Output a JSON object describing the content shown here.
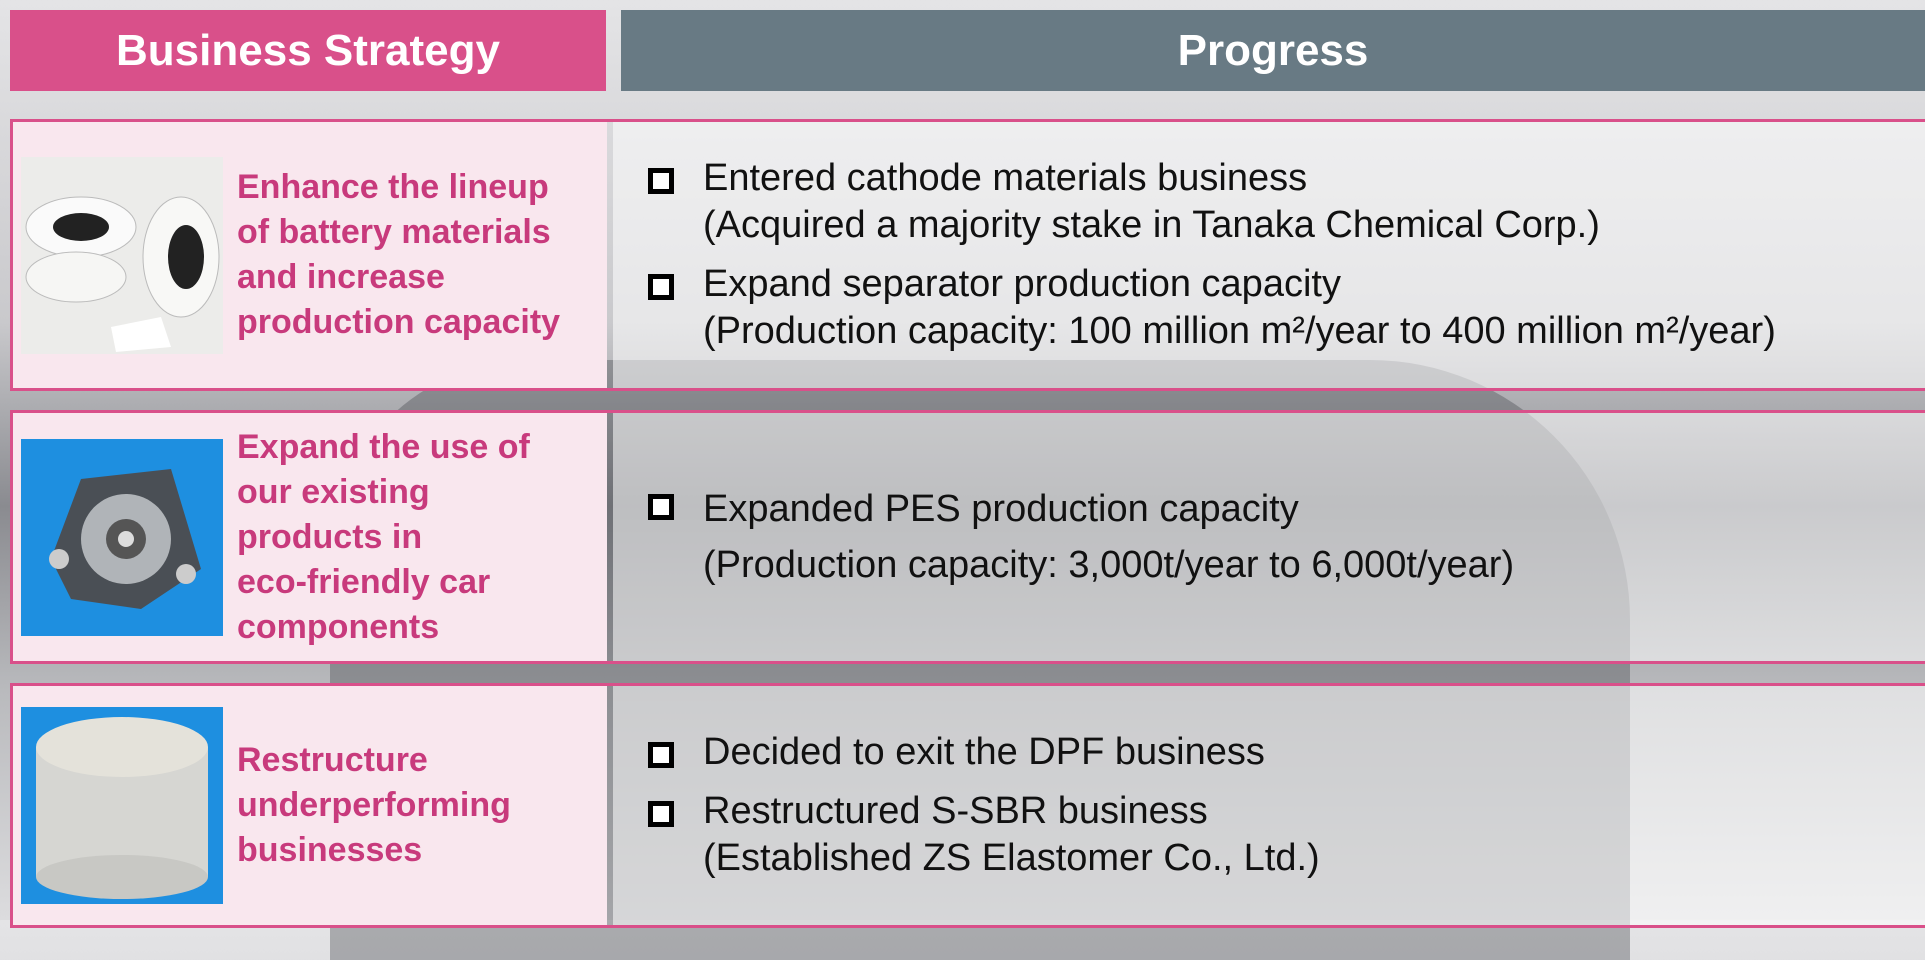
{
  "header": {
    "strategy": "Business Strategy",
    "progress": "Progress"
  },
  "rows": [
    {
      "strategy": [
        "Enhance the lineup",
        "of battery materials",
        "and increase",
        "production capacity"
      ],
      "progress": [
        {
          "lines": [
            "Entered cathode materials business",
            "(Acquired a majority stake in Tanaka Chemical Corp.)"
          ]
        },
        {
          "lines": [
            "Expand separator production capacity",
            "(Production capacity: 100 million m²/year to 400 million m²/year)"
          ]
        }
      ]
    },
    {
      "strategy": [
        "Expand the use of",
        "our existing",
        "products in",
        "eco-friendly car",
        "components"
      ],
      "progress": [
        {
          "lines": [
            "Expanded  PES production capacity",
            "(Production capacity: 3,000t/year to 6,000t/year)"
          ]
        }
      ]
    },
    {
      "strategy": [
        "Restructure",
        "underperforming",
        "businesses"
      ],
      "progress": [
        {
          "lines": [
            "Decided to exit the DPF business"
          ]
        },
        {
          "lines": [
            "Restructured S-SBR business",
            "(Established ZS Elastomer Co., Ltd.)"
          ]
        }
      ]
    }
  ]
}
